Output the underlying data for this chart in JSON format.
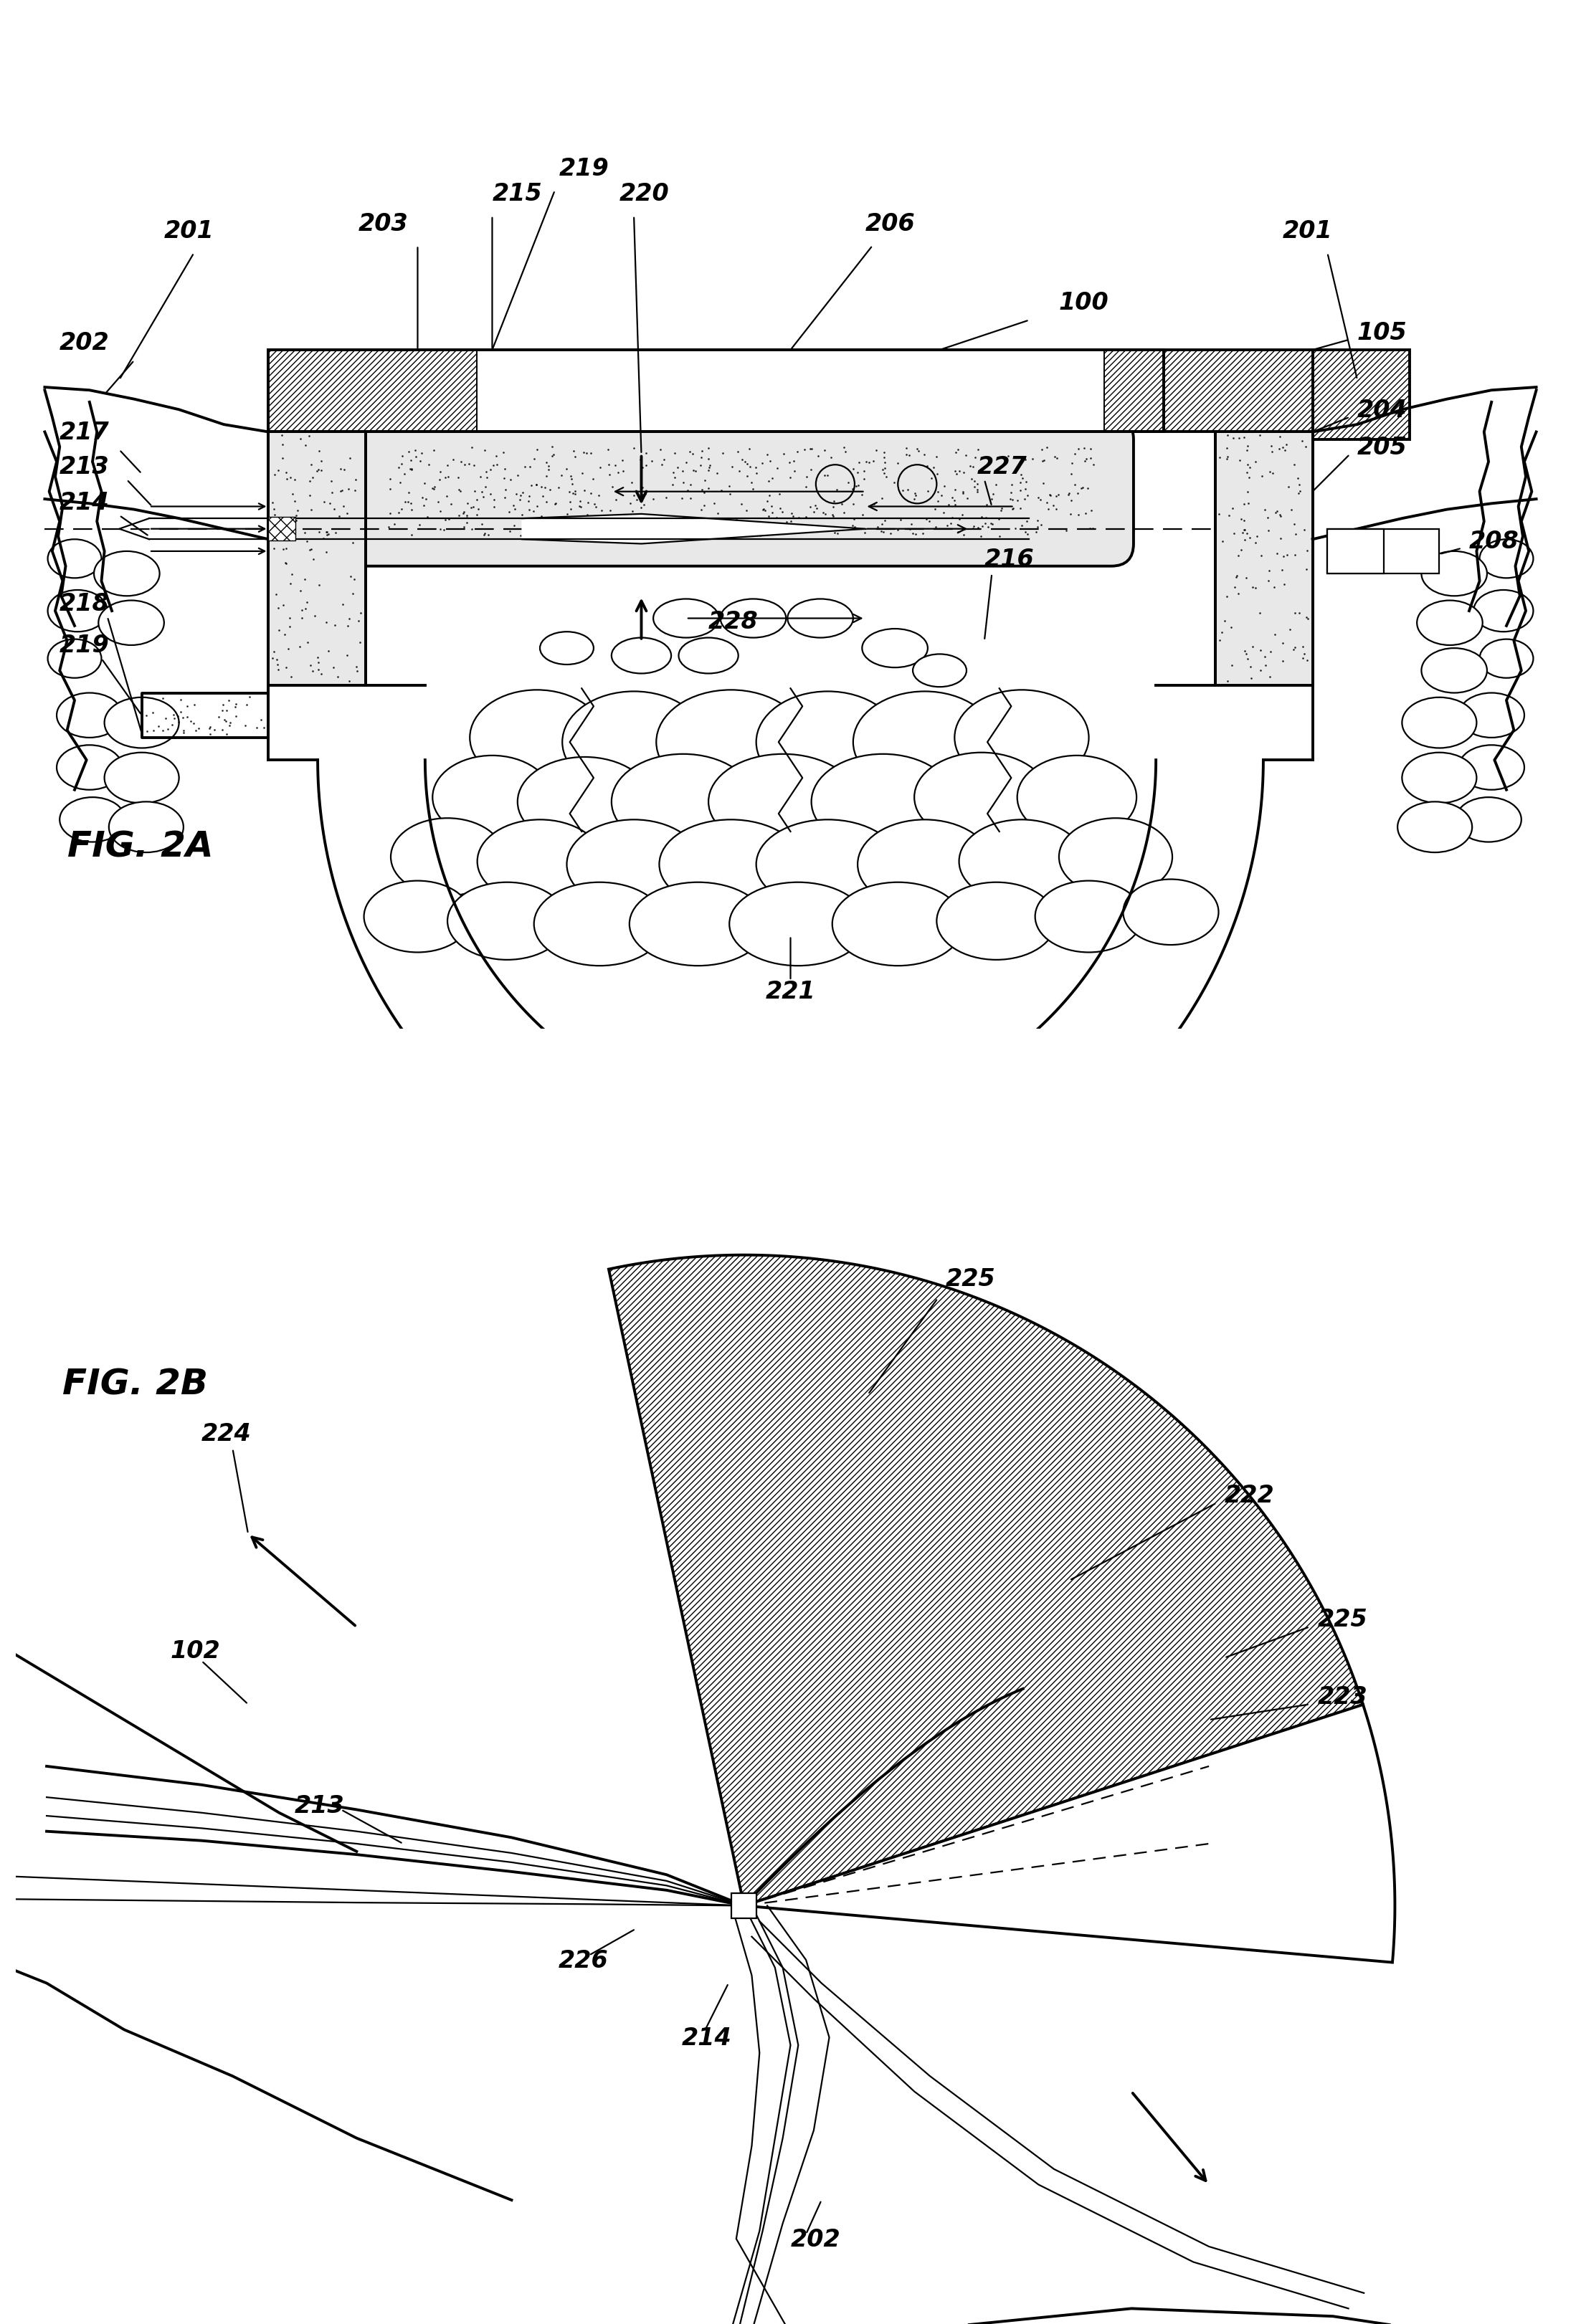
{
  "fig_width": 22.05,
  "fig_height": 32.42,
  "bg_color": "#ffffff",
  "lw_main": 2.8,
  "lw_thin": 1.6,
  "lw_thick": 4.0,
  "label_fontsize": 24,
  "fig_label_fontsize": 36
}
